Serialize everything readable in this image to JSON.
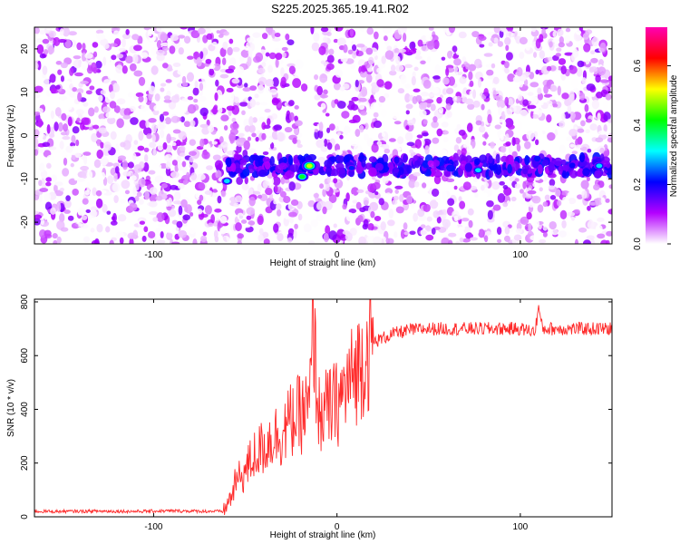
{
  "title": "S225.2025.365.19.41.R02",
  "chart_data": [
    {
      "type": "heatmap",
      "xlabel": "Height of straight line (km)",
      "ylabel": "Frequency (Hz)",
      "xlim": [
        -165,
        150
      ],
      "ylim": [
        -25,
        25
      ],
      "xticks": [
        -100,
        0,
        100
      ],
      "yticks": [
        -20,
        -10,
        0,
        10,
        20
      ],
      "colorbar": {
        "label": "Normalized spectral amplitude",
        "range": [
          0.0,
          0.73
        ],
        "ticks": [
          0.0,
          0.2,
          0.4,
          0.6
        ],
        "colors": [
          "#ffffff",
          "#b400ff",
          "#0000ff",
          "#00ffff",
          "#00ff00",
          "#ffff00",
          "#ff0000",
          "#ff00b4"
        ]
      },
      "band": {
        "frequency": -7,
        "start_x": -62,
        "end_x": 150
      },
      "gap": {
        "x_from": -20,
        "x_to": -12
      },
      "peaks": [
        {
          "x": -15,
          "y": -7,
          "amplitude": 0.55
        },
        {
          "x": -19,
          "y": -9.5,
          "amplitude": 0.45
        },
        {
          "x": -60,
          "y": -10.5,
          "amplitude": 0.3
        },
        {
          "x": 8,
          "y": -7.5,
          "amplitude": 0.28
        },
        {
          "x": 77,
          "y": -8,
          "amplitude": 0.32
        },
        {
          "x": 143,
          "y": -7,
          "amplitude": 0.35
        }
      ]
    },
    {
      "type": "line",
      "xlabel": "Height of straight line (km)",
      "ylabel": "SNR (10 * v/v)",
      "xlim": [
        -165,
        150
      ],
      "ylim": [
        0,
        810
      ],
      "xticks": [
        -100,
        0,
        100
      ],
      "yticks": [
        0,
        200,
        400,
        600,
        800
      ],
      "color": "#ff2a2a",
      "series": [
        {
          "x": [
            -165,
            -150,
            -130,
            -110,
            -90,
            -75,
            -62,
            -58,
            -55,
            -50,
            -45,
            -40,
            -35,
            -30,
            -25,
            -20,
            -15,
            -13,
            -10,
            -5,
            0,
            5,
            10,
            15,
            20,
            30,
            40,
            50,
            60,
            70,
            80,
            90,
            100,
            108,
            110,
            112,
            120,
            130,
            140,
            150
          ],
          "y": [
            20,
            20,
            21,
            20,
            22,
            21,
            20,
            70,
            130,
            170,
            230,
            260,
            300,
            310,
            360,
            380,
            400,
            720,
            380,
            400,
            420,
            480,
            540,
            600,
            650,
            680,
            695,
            700,
            700,
            700,
            700,
            700,
            700,
            690,
            780,
            700,
            700,
            700,
            700,
            700
          ]
        }
      ]
    }
  ]
}
